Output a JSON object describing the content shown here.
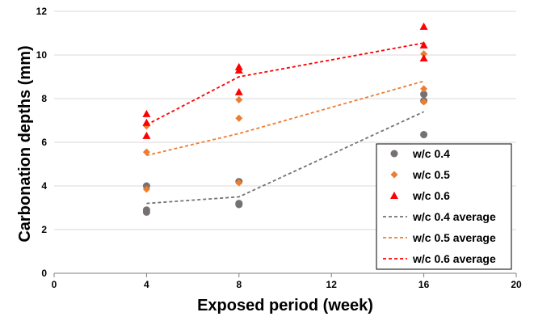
{
  "chart_data": {
    "type": "scatter",
    "xlabel": "Exposed period (week)",
    "ylabel": "Carbonation depths (mm)",
    "xlim": [
      0,
      20
    ],
    "ylim": [
      0,
      12
    ],
    "xticks": [
      "0",
      "4",
      "8",
      "12",
      "16",
      "20"
    ],
    "yticks": [
      "0",
      "2",
      "4",
      "6",
      "8",
      "10",
      "12"
    ],
    "grid": "horizontal",
    "legend_position": "lower-right",
    "series": [
      {
        "name": "w/c 0.4",
        "kind": "scatter",
        "marker": "circle",
        "color": "#767171",
        "points": [
          [
            4,
            2.9
          ],
          [
            4,
            2.8
          ],
          [
            4,
            4.0
          ],
          [
            8,
            4.2
          ],
          [
            8,
            3.2
          ],
          [
            8,
            3.15
          ],
          [
            16,
            8.2
          ],
          [
            16,
            7.9
          ],
          [
            16,
            6.35
          ]
        ]
      },
      {
        "name": "w/c 0.5",
        "kind": "scatter",
        "marker": "diamond",
        "color": "#ED7D31",
        "points": [
          [
            4,
            6.75
          ],
          [
            4,
            5.55
          ],
          [
            4,
            3.85
          ],
          [
            8,
            7.95
          ],
          [
            8,
            7.1
          ],
          [
            8,
            4.15
          ],
          [
            16,
            10.05
          ],
          [
            16,
            8.45
          ],
          [
            16,
            7.85
          ]
        ]
      },
      {
        "name": "w/c 0.6",
        "kind": "scatter",
        "marker": "triangle",
        "color": "#FF0000",
        "points": [
          [
            4,
            7.3
          ],
          [
            4,
            6.9
          ],
          [
            4,
            6.3
          ],
          [
            8,
            9.45
          ],
          [
            8,
            9.3
          ],
          [
            8,
            8.3
          ],
          [
            16,
            11.3
          ],
          [
            16,
            10.45
          ],
          [
            16,
            9.85
          ]
        ]
      },
      {
        "name": "w/c 0.4 average",
        "kind": "line",
        "color": "#767171",
        "points": [
          [
            4,
            3.2
          ],
          [
            8,
            3.5
          ],
          [
            16,
            7.4
          ]
        ]
      },
      {
        "name": "w/c 0.5 average",
        "kind": "line",
        "color": "#ED7D31",
        "points": [
          [
            4,
            5.4
          ],
          [
            8,
            6.4
          ],
          [
            16,
            8.8
          ]
        ]
      },
      {
        "name": "w/c 0.6 average",
        "kind": "line",
        "color": "#FF0000",
        "points": [
          [
            4,
            6.8
          ],
          [
            8,
            9.0
          ],
          [
            16,
            10.55
          ]
        ]
      }
    ]
  }
}
